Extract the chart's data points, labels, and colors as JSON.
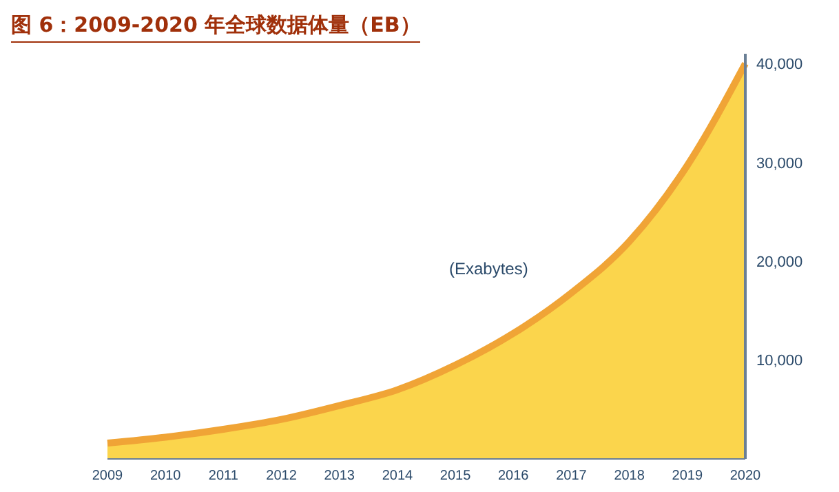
{
  "chart_data": {
    "type": "area",
    "title": "图 6：2009-2020 年全球数据体量（EB）",
    "categories": [
      "2009",
      "2010",
      "2011",
      "2012",
      "2013",
      "2014",
      "2015",
      "2016",
      "2017",
      "2018",
      "2019",
      "2020"
    ],
    "series": [
      {
        "color": "#fbd54c",
        "values": [
          1600,
          2200,
          3000,
          4000,
          5400,
          7000,
          9500,
          12700,
          16800,
          22000,
          29700,
          40000
        ]
      }
    ],
    "ylim": [
      0,
      41000
    ],
    "yticks": [
      {
        "value": 10000,
        "label": "10,000"
      },
      {
        "value": 20000,
        "label": "20,000"
      },
      {
        "value": 30000,
        "label": "30,000"
      },
      {
        "value": 40000,
        "label": "40,000"
      }
    ],
    "annotations": [
      "(Exabytes)"
    ],
    "grid": false,
    "legend": false
  }
}
